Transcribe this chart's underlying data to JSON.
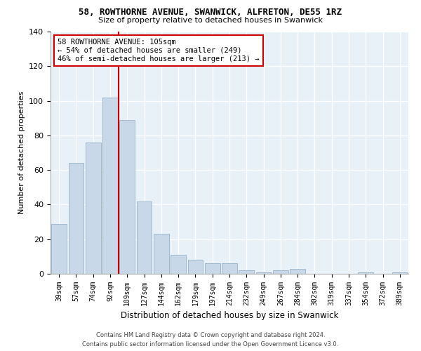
{
  "title": "58, ROWTHORNE AVENUE, SWANWICK, ALFRETON, DE55 1RZ",
  "subtitle": "Size of property relative to detached houses in Swanwick",
  "xlabel": "Distribution of detached houses by size in Swanwick",
  "ylabel": "Number of detached properties",
  "bar_labels": [
    "39sqm",
    "57sqm",
    "74sqm",
    "92sqm",
    "109sqm",
    "127sqm",
    "144sqm",
    "162sqm",
    "179sqm",
    "197sqm",
    "214sqm",
    "232sqm",
    "249sqm",
    "267sqm",
    "284sqm",
    "302sqm",
    "319sqm",
    "337sqm",
    "354sqm",
    "372sqm",
    "389sqm"
  ],
  "bar_values": [
    29,
    64,
    76,
    102,
    89,
    42,
    23,
    11,
    8,
    6,
    6,
    2,
    1,
    2,
    3,
    0,
    0,
    0,
    1,
    0,
    1
  ],
  "bar_color": "#c8d8e8",
  "bar_edgecolor": "#a0b8cc",
  "vline_x_index": 4,
  "vline_color": "#cc0000",
  "annotation_text": "58 ROWTHORNE AVENUE: 105sqm\n← 54% of detached houses are smaller (249)\n46% of semi-detached houses are larger (213) →",
  "annotation_box_color": "#ffffff",
  "annotation_box_edgecolor": "#cc0000",
  "ylim": [
    0,
    140
  ],
  "yticks": [
    0,
    20,
    40,
    60,
    80,
    100,
    120,
    140
  ],
  "background_color": "#e8f0f8",
  "grid_color": "#ffffff",
  "fig_background": "#ffffff",
  "footer_line1": "Contains HM Land Registry data © Crown copyright and database right 2024.",
  "footer_line2": "Contains public sector information licensed under the Open Government Licence v3.0."
}
